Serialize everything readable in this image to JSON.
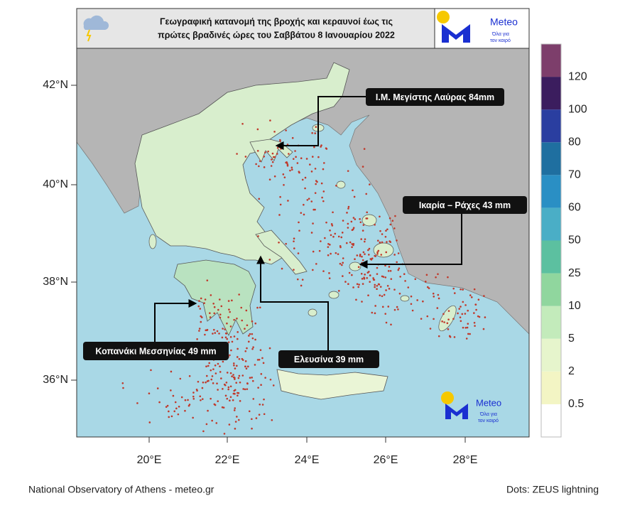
{
  "header": {
    "title_lines": [
      "Γεωγραφική κατανομή της βροχής και κεραυνοί  έως τις",
      "πρώτες βραδινές ώρες του Σαββάτου 8 Ιανουαρίου 2022"
    ],
    "logo": {
      "name": "Meteo",
      "tagline_lines": [
        "Όλα για",
        "τον καιρό"
      ]
    }
  },
  "map": {
    "lat_labels": [
      "42°N",
      "40°N",
      "38°N",
      "36°N"
    ],
    "lon_labels": [
      "20°E",
      "22°E",
      "24°E",
      "26°E",
      "28°E"
    ],
    "annotations": [
      {
        "label": "Ι.Μ. Μεγίστης Λαύρας 84mm"
      },
      {
        "label": "Ικαρία – Ράχες 43 mm"
      },
      {
        "label": "Κοπανάκι Μεσσηνίας 49 mm"
      },
      {
        "label": "Ελευσίνα 39 mm"
      }
    ],
    "watermark": {
      "name": "Meteo",
      "tagline_lines": [
        "Όλα για",
        "τον καιρό"
      ]
    }
  },
  "legend": {
    "labels": [
      "0.5",
      "2",
      "5",
      "10",
      "25",
      "50",
      "60",
      "70",
      "80",
      "100",
      "120"
    ],
    "colors": [
      "#ffffff",
      "#f3f5c4",
      "#e6f5cc",
      "#c3ebbb",
      "#90d69e",
      "#5cc0a0",
      "#4aaec6",
      "#2a8fc4",
      "#1f6fa0",
      "#2a3ea0",
      "#3b1d5e",
      "#7d3e6b"
    ]
  },
  "footer": {
    "source": "National Observatory of Athens - meteo.gr",
    "note": "Dots: ZEUS lightning"
  }
}
